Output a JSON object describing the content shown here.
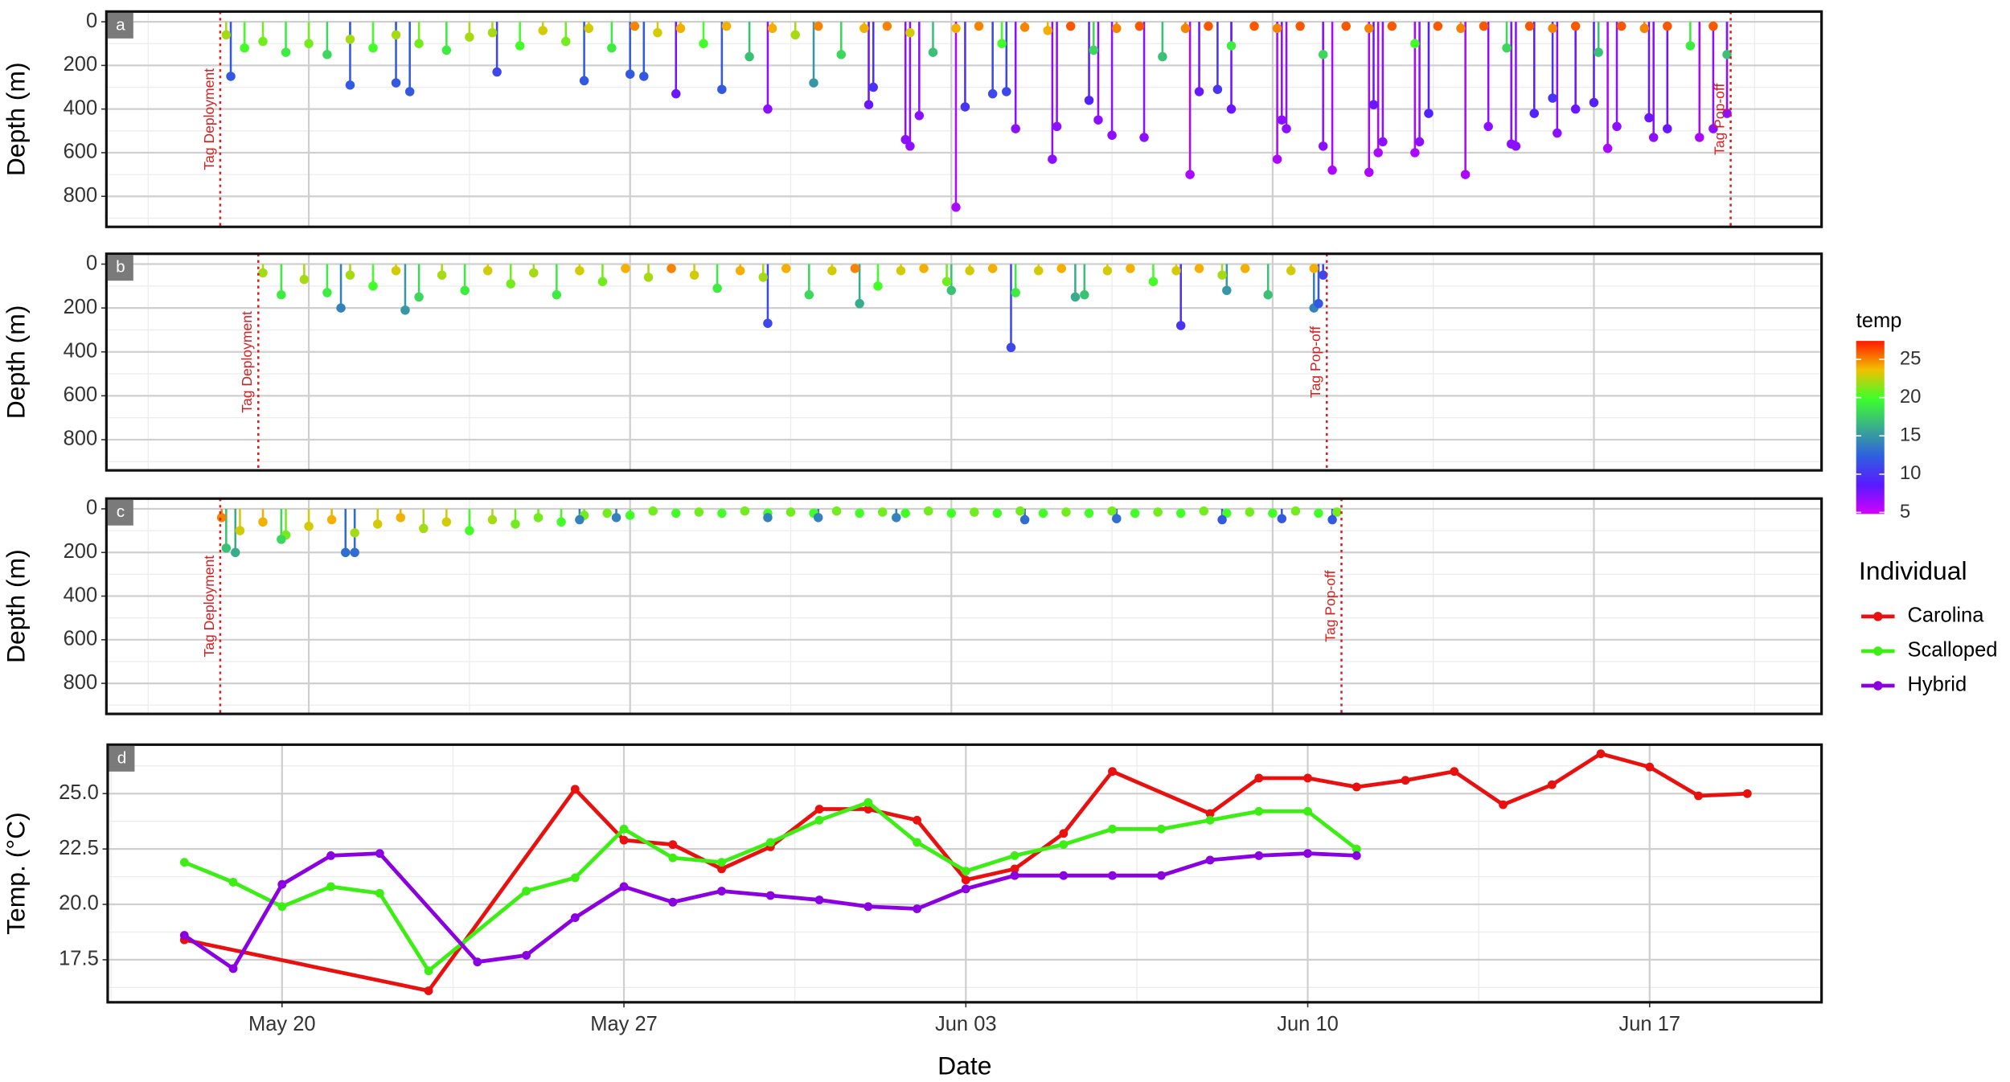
{
  "chart_data": [
    {
      "type": "lollipop",
      "panel": "a",
      "y_label": "Depth (m)",
      "xlim": [
        15.59,
        52.96
      ],
      "xticks": [
        20,
        27,
        34,
        41,
        48
      ],
      "ylim": [
        -47,
        940
      ],
      "y_reversed": true,
      "yticks": [
        0,
        200,
        400,
        600,
        800
      ],
      "grid": true,
      "vlines": [
        {
          "x": 18.07,
          "label": "Tag Deployment"
        },
        {
          "x": 50.98,
          "label": "Tag Pop-off"
        }
      ],
      "dives": {
        "x": [
          18.2,
          18.6,
          19.0,
          19.5,
          20.0,
          20.4,
          20.9,
          21.4,
          21.9,
          22.4,
          23.0,
          23.5,
          24.0,
          24.6,
          25.1,
          25.6,
          26.1,
          26.6,
          27.1,
          27.6,
          28.1,
          28.6,
          29.1,
          29.6,
          30.1,
          30.6,
          31.1,
          31.6,
          32.1,
          32.6,
          33.1,
          33.6,
          34.1,
          34.6,
          35.1,
          35.6,
          36.1,
          36.6,
          37.1,
          37.6,
          38.1,
          38.6,
          39.1,
          39.6,
          40.1,
          40.6,
          41.1,
          41.6,
          42.1,
          42.6,
          43.1,
          43.6,
          44.1,
          44.6,
          45.1,
          45.6,
          46.1,
          46.6,
          47.1,
          47.6,
          48.1,
          48.6,
          49.1,
          49.6,
          50.1,
          50.6,
          50.9,
          18.3,
          20.9,
          21.9,
          22.2,
          24.1,
          26.0,
          27.0,
          27.3,
          28.0,
          29.0,
          30.0,
          31.0,
          32.2,
          32.3,
          33.0,
          33.1,
          33.3,
          34.1,
          34.3,
          34.9,
          35.2,
          35.4,
          36.2,
          36.3,
          37.0,
          37.2,
          37.5,
          38.2,
          39.2,
          39.4,
          39.8,
          40.1,
          41.1,
          41.2,
          41.3,
          42.1,
          42.3,
          43.1,
          43.2,
          43.3,
          43.4,
          44.1,
          44.2,
          44.4,
          45.2,
          45.7,
          46.2,
          46.3,
          46.7,
          47.1,
          47.2,
          47.6,
          48.0,
          48.3,
          48.5,
          49.2,
          49.3,
          49.6,
          50.3,
          50.6,
          50.9
        ],
        "depth": [
          60,
          120,
          90,
          140,
          100,
          150,
          80,
          120,
          60,
          100,
          130,
          70,
          50,
          110,
          40,
          90,
          30,
          120,
          20,
          50,
          30,
          100,
          20,
          160,
          30,
          60,
          20,
          150,
          30,
          20,
          50,
          140,
          30,
          20,
          100,
          25,
          40,
          20,
          130,
          30,
          20,
          160,
          30,
          20,
          110,
          20,
          30,
          20,
          150,
          20,
          30,
          20,
          100,
          20,
          30,
          20,
          120,
          20,
          30,
          20,
          140,
          20,
          30,
          20,
          110,
          20,
          150,
          250,
          290,
          280,
          320,
          230,
          270,
          240,
          250,
          330,
          310,
          400,
          280,
          380,
          300,
          540,
          570,
          430,
          850,
          390,
          330,
          320,
          490,
          630,
          480,
          360,
          450,
          520,
          530,
          700,
          320,
          310,
          400,
          630,
          450,
          490,
          570,
          680,
          690,
          380,
          600,
          550,
          600,
          550,
          420,
          700,
          480,
          560,
          570,
          420,
          350,
          510,
          400,
          370,
          580,
          480,
          440,
          530,
          490,
          530,
          490,
          420
        ],
        "temp": [
          22,
          20,
          21,
          19,
          21,
          18,
          22,
          20,
          22,
          21,
          19,
          22,
          22,
          20,
          23,
          21,
          23,
          19,
          25,
          23,
          24,
          20,
          24,
          17,
          24,
          22,
          25,
          18,
          24,
          25,
          23,
          17,
          24,
          25,
          20,
          25,
          24,
          26,
          18,
          25,
          26,
          17,
          25,
          26,
          19,
          26,
          25,
          26,
          18,
          26,
          25,
          26,
          20,
          26,
          25,
          26,
          18,
          26,
          25,
          26,
          17,
          26,
          25,
          26,
          19,
          26,
          17,
          12,
          12,
          12,
          12,
          11,
          12,
          12,
          12,
          8,
          12,
          7,
          15,
          8,
          10,
          7,
          7,
          7,
          6,
          10,
          11,
          11,
          7,
          7,
          7,
          9,
          7,
          7,
          7,
          6,
          8,
          10,
          8,
          6,
          7,
          7,
          7,
          6,
          6,
          8,
          6,
          7,
          6,
          7,
          9,
          6,
          7,
          7,
          7,
          9,
          10,
          7,
          8,
          9,
          6,
          7,
          8,
          7,
          8,
          6,
          7,
          7
        ]
      }
    },
    {
      "type": "lollipop",
      "panel": "b",
      "y_label": "Depth (m)",
      "xlim": [
        15.59,
        52.96
      ],
      "xticks": [
        20,
        27,
        34,
        41,
        48
      ],
      "ylim": [
        -47,
        940
      ],
      "y_reversed": true,
      "yticks": [
        0,
        200,
        400,
        600,
        800
      ],
      "grid": true,
      "vlines": [
        {
          "x": 18.9,
          "label": "Tag Deployment"
        },
        {
          "x": 42.18,
          "label": "Tag Pop-off"
        }
      ],
      "dives": {
        "x": [
          19.0,
          19.4,
          19.9,
          20.4,
          20.9,
          21.4,
          21.9,
          22.4,
          22.9,
          23.4,
          23.9,
          24.4,
          24.9,
          25.4,
          25.9,
          26.4,
          26.9,
          27.4,
          27.9,
          28.4,
          28.9,
          29.4,
          29.9,
          30.4,
          30.9,
          31.4,
          31.9,
          32.4,
          32.9,
          33.4,
          33.9,
          34.4,
          34.9,
          35.4,
          35.9,
          36.4,
          36.9,
          37.4,
          37.9,
          38.4,
          38.9,
          39.4,
          39.9,
          40.4,
          40.9,
          41.4,
          41.9,
          20.7,
          22.1,
          30.0,
          32.0,
          34.0,
          35.3,
          36.7,
          39.0,
          40.0,
          41.9,
          42.0,
          42.1
        ],
        "depth": [
          40,
          140,
          70,
          130,
          50,
          100,
          30,
          150,
          50,
          120,
          30,
          90,
          40,
          140,
          30,
          80,
          20,
          60,
          20,
          50,
          110,
          30,
          60,
          20,
          140,
          30,
          20,
          100,
          30,
          20,
          80,
          30,
          20,
          130,
          30,
          20,
          140,
          30,
          20,
          80,
          30,
          20,
          50,
          20,
          140,
          30,
          20,
          200,
          210,
          270,
          180,
          120,
          380,
          150,
          280,
          120,
          200,
          180,
          50
        ],
        "temp": [
          22,
          19,
          22,
          19,
          22,
          20,
          23,
          18,
          22,
          19,
          23,
          21,
          22,
          19,
          23,
          21,
          24,
          22,
          25,
          23,
          19,
          24,
          22,
          24,
          18,
          23,
          25,
          20,
          23,
          24,
          21,
          23,
          24,
          19,
          23,
          24,
          17,
          23,
          24,
          20,
          23,
          24,
          22,
          24,
          17,
          23,
          24,
          14,
          15,
          11,
          16,
          17,
          11,
          16,
          10,
          15,
          14,
          12,
          11
        ]
      }
    },
    {
      "type": "lollipop",
      "panel": "c",
      "y_label": "Depth (m)",
      "xlim": [
        15.59,
        52.96
      ],
      "xticks": [
        20,
        27,
        34,
        41,
        48
      ],
      "ylim": [
        -47,
        940
      ],
      "y_reversed": true,
      "yticks": [
        0,
        200,
        400,
        600,
        800
      ],
      "grid": true,
      "vlines": [
        {
          "x": 18.07,
          "label": "Tag Deployment"
        },
        {
          "x": 42.5,
          "label": "Tag Pop-off"
        }
      ],
      "dives": {
        "x": [
          18.1,
          18.5,
          19.0,
          19.5,
          20.0,
          20.5,
          21.0,
          21.5,
          22.0,
          22.5,
          23.0,
          23.5,
          24.0,
          24.5,
          25.0,
          25.5,
          26.0,
          26.5,
          27.0,
          27.5,
          28.0,
          28.5,
          29.0,
          29.5,
          30.0,
          30.5,
          31.0,
          31.5,
          32.0,
          32.5,
          33.0,
          33.5,
          34.0,
          34.5,
          35.0,
          35.5,
          36.0,
          36.5,
          37.0,
          37.5,
          38.0,
          38.5,
          39.0,
          39.5,
          40.0,
          40.5,
          41.0,
          41.5,
          42.0,
          42.4,
          18.2,
          18.4,
          19.4,
          20.8,
          21.0,
          25.9,
          26.7,
          30.0,
          31.1,
          32.8,
          35.6,
          37.6,
          39.9,
          41.2,
          42.3
        ],
        "depth": [
          40,
          100,
          60,
          120,
          80,
          50,
          110,
          70,
          40,
          90,
          60,
          100,
          50,
          70,
          40,
          60,
          30,
          20,
          30,
          10,
          20,
          15,
          20,
          10,
          20,
          15,
          20,
          10,
          20,
          15,
          20,
          10,
          20,
          15,
          20,
          10,
          20,
          15,
          20,
          10,
          20,
          15,
          20,
          10,
          20,
          15,
          20,
          10,
          20,
          15,
          180,
          200,
          140,
          200,
          200,
          50,
          40,
          40,
          40,
          40,
          50,
          45,
          50,
          45,
          50
        ],
        "temp": [
          25,
          23,
          24,
          21,
          23,
          24,
          22,
          23,
          24,
          22,
          23,
          20,
          22,
          21,
          21,
          20,
          21,
          21,
          20,
          21,
          20,
          21,
          20,
          21,
          20,
          21,
          20,
          21,
          20,
          21,
          20,
          21,
          20,
          21,
          20,
          21,
          20,
          21,
          20,
          21,
          20,
          21,
          20,
          21,
          20,
          21,
          20,
          21,
          20,
          21,
          17,
          16,
          18,
          13,
          13,
          14,
          14,
          14,
          14,
          14,
          13,
          13,
          12,
          12,
          12
        ]
      }
    },
    {
      "type": "line",
      "panel": "d",
      "y_label": "Temp. (°C)",
      "x_label": "Date",
      "legend_title": "Individual",
      "xlim": [
        16.43,
        51.52
      ],
      "xticks": [
        {
          "value": 20,
          "label": "May 20"
        },
        {
          "value": 27,
          "label": "May 27"
        },
        {
          "value": 34,
          "label": "Jun 03"
        },
        {
          "value": 41,
          "label": "Jun 10"
        },
        {
          "value": 48,
          "label": "Jun 17"
        }
      ],
      "ylim": [
        15.58,
        27.21
      ],
      "yticks": [
        17.5,
        {
          "value": 20,
          "label": "20.0"
        },
        22.5,
        {
          "value": 25,
          "label": "25.0"
        }
      ],
      "grid": true,
      "series": [
        {
          "name": "Carolina",
          "color": "#e8110f",
          "x": [
            18,
            23,
            26,
            27,
            28,
            29,
            30,
            31,
            32,
            33,
            34,
            35,
            36,
            37,
            39,
            40,
            41,
            42,
            43,
            44,
            45,
            46,
            47,
            48,
            49,
            50
          ],
          "values": [
            18.4,
            16.1,
            25.2,
            22.9,
            22.7,
            21.6,
            22.6,
            24.3,
            24.3,
            23.8,
            21.1,
            21.6,
            23.2,
            26.0,
            24.1,
            25.7,
            25.7,
            25.3,
            25.6,
            26.0,
            24.5,
            25.4,
            26.8,
            26.2,
            24.9,
            25.0
          ]
        },
        {
          "name": "Scalloped",
          "color": "#3cee14",
          "x": [
            18,
            19,
            20,
            21,
            22,
            23,
            25,
            26,
            27,
            28,
            29,
            30,
            31,
            32,
            33,
            34,
            35,
            36,
            37,
            38,
            39,
            40,
            41,
            42
          ],
          "values": [
            21.9,
            21.0,
            19.9,
            20.8,
            20.5,
            17.0,
            20.6,
            21.2,
            23.4,
            22.1,
            21.9,
            22.8,
            23.8,
            24.6,
            22.8,
            21.5,
            22.2,
            22.7,
            23.4,
            23.4,
            23.8,
            24.2,
            24.2,
            22.5
          ]
        },
        {
          "name": "Hybrid",
          "color": "#8a00e0",
          "x": [
            18,
            19,
            20,
            21,
            22,
            24,
            25,
            26,
            27,
            28,
            29,
            30,
            31,
            32,
            33,
            34,
            35,
            36,
            37,
            38,
            39,
            40,
            41,
            42
          ],
          "values": [
            18.6,
            17.1,
            20.9,
            22.2,
            22.3,
            17.4,
            17.7,
            19.4,
            20.8,
            20.1,
            20.6,
            20.4,
            20.2,
            19.9,
            19.8,
            20.7,
            21.3,
            21.3,
            21.3,
            21.3,
            22.0,
            22.2,
            22.3,
            22.2
          ]
        }
      ]
    }
  ],
  "color_scale": {
    "title": "temp",
    "lim": [
      4.8,
      27.4
    ],
    "ticks": [
      5,
      10,
      15,
      20,
      25
    ],
    "colors": [
      "#d400ff",
      "#5a1aff",
      "#2f5fe0",
      "#3aae8c",
      "#3dff2a",
      "#f2c000",
      "#ff1a00"
    ]
  }
}
